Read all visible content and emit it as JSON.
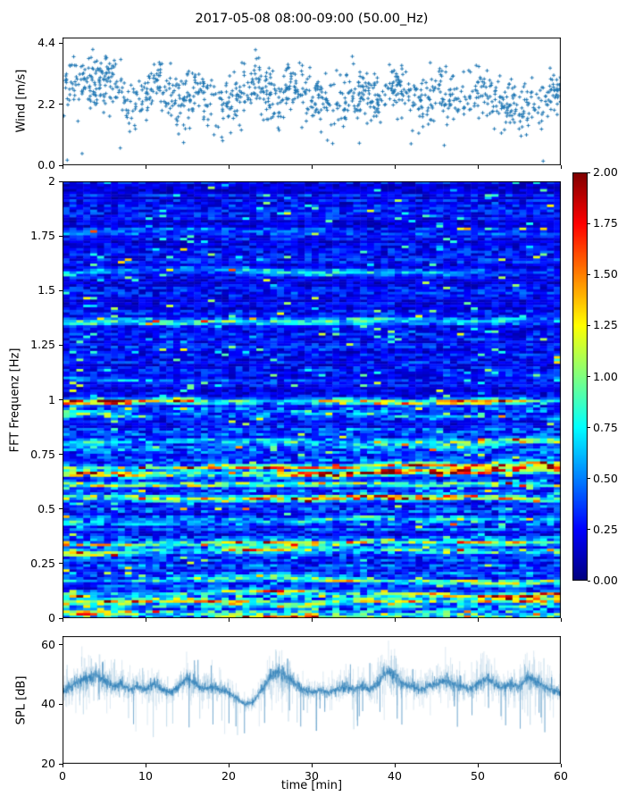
{
  "title": "2017-05-08 08:00-09:00 (50.00_Hz)",
  "colors": {
    "marker": "#1f77b4",
    "spl_line": "#1f77b4",
    "spine": "#000000",
    "background": "#ffffff",
    "text": "#000000"
  },
  "chart_data": [
    {
      "type": "scatter",
      "name": "wind-speed",
      "ylabel": "Wind [m/s]",
      "ylim": [
        0,
        4.6
      ],
      "yticks": [
        0.0,
        2.2,
        4.4
      ],
      "ytick_labels": [
        "0.0",
        "2.2",
        "4.4"
      ],
      "xlim": [
        0,
        60
      ],
      "marker": "plus",
      "n_points": 1150,
      "noise_std": 0.5,
      "seed": 1234,
      "minute_mean_mps": [
        2.7,
        2.9,
        3.0,
        3.1,
        3.0,
        3.2,
        3.1,
        2.8,
        2.2,
        2.0,
        2.4,
        3.0,
        3.1,
        2.5,
        2.2,
        2.4,
        2.6,
        2.5,
        2.3,
        2.2,
        2.1,
        2.3,
        2.6,
        2.9,
        2.8,
        2.5,
        2.3,
        2.7,
        3.0,
        2.7,
        2.4,
        2.2,
        2.3,
        2.2,
        2.1,
        2.4,
        2.6,
        2.5,
        2.3,
        2.6,
        2.8,
        2.6,
        2.4,
        2.2,
        2.4,
        2.6,
        2.5,
        2.3,
        2.2,
        2.5,
        2.7,
        2.6,
        2.4,
        2.2,
        2.1,
        2.0,
        2.3,
        2.0,
        2.2,
        2.6,
        2.8
      ]
    },
    {
      "type": "heatmap",
      "name": "fft-spectrogram",
      "ylabel": "FFT Frequenz [Hz]",
      "ylim": [
        0,
        2
      ],
      "yticks": [
        0,
        0.25,
        0.5,
        0.75,
        1,
        1.25,
        1.5,
        1.75,
        2
      ],
      "ytick_labels": [
        "0",
        "0.25",
        "0.5",
        "0.75",
        "1",
        "1.25",
        "1.5",
        "1.75",
        "2"
      ],
      "xlim": [
        0,
        60
      ],
      "colormap": "jet",
      "clim": [
        0,
        2
      ],
      "rows": 170,
      "cols": 72,
      "seed": 77,
      "background_level": {
        "below_1hz": 0.36,
        "above_1hz": 0.25,
        "low_freq_boost": 0.3
      },
      "bands": [
        {
          "freq": 0.02,
          "amp": 1.3,
          "width": 0.012
        },
        {
          "freq": 0.07,
          "amp": 0.8,
          "width": 0.012
        },
        {
          "freq": 0.105,
          "amp": 0.9,
          "width": 0.01
        },
        {
          "freq": 0.175,
          "amp": 0.65,
          "width": 0.012
        },
        {
          "freq": 0.3,
          "amp": 1.1,
          "width": 0.014
        },
        {
          "freq": 0.335,
          "amp": 0.7,
          "width": 0.01
        },
        {
          "freq": 0.44,
          "amp": 0.55,
          "width": 0.012
        },
        {
          "freq": 0.55,
          "amp": 0.85,
          "width": 0.012
        },
        {
          "freq": 0.615,
          "amp": 0.6,
          "width": 0.01
        },
        {
          "freq": 0.665,
          "amp": 1.6,
          "width": 0.014
        },
        {
          "freq": 0.695,
          "amp": 1.0,
          "width": 0.01
        },
        {
          "freq": 0.8,
          "amp": 0.45,
          "width": 0.014
        },
        {
          "freq": 0.93,
          "amp": 0.7,
          "width": 0.009
        },
        {
          "freq": 0.985,
          "amp": 1.25,
          "width": 0.012
        },
        {
          "freq": 1.1,
          "amp": 0.35,
          "width": 0.01
        },
        {
          "freq": 1.35,
          "amp": 0.45,
          "width": 0.014
        },
        {
          "freq": 1.58,
          "amp": 0.4,
          "width": 0.014
        },
        {
          "freq": 1.77,
          "amp": 0.3,
          "width": 0.012
        }
      ]
    },
    {
      "type": "line",
      "name": "spl",
      "ylabel": "SPL [dB]",
      "ylim": [
        20,
        63
      ],
      "yticks": [
        20,
        40,
        60
      ],
      "ytick_labels": [
        "20",
        "40",
        "60"
      ],
      "xlim": [
        0,
        60
      ],
      "xticks": [
        0,
        10,
        20,
        30,
        40,
        50,
        60
      ],
      "xtick_labels": [
        "0",
        "10",
        "20",
        "30",
        "40",
        "50",
        "60"
      ],
      "xlabel": "time [min]",
      "seed": 555,
      "minute_mean_db": [
        44,
        46,
        48,
        49,
        50,
        48,
        46,
        47,
        45,
        46,
        45,
        47,
        45,
        44,
        46,
        49,
        47,
        45,
        46,
        45,
        44,
        42,
        40,
        41,
        45,
        49,
        51,
        49,
        47,
        45,
        44,
        45,
        44,
        45,
        46,
        45,
        46,
        45,
        47,
        51,
        50,
        47,
        46,
        45,
        46,
        47,
        48,
        47,
        46,
        45,
        47,
        49,
        47,
        46,
        47,
        46,
        49,
        48,
        46,
        45,
        44
      ]
    }
  ],
  "colorbar": {
    "colormap": "jet",
    "clim": [
      0,
      2
    ],
    "tick_values": [
      0,
      0.25,
      0.5,
      0.75,
      1,
      1.25,
      1.5,
      1.75,
      2
    ],
    "tick_labels": [
      "0.00",
      "0.25",
      "0.50",
      "0.75",
      "1.00",
      "1.25",
      "1.50",
      "1.75",
      "2.00"
    ]
  }
}
